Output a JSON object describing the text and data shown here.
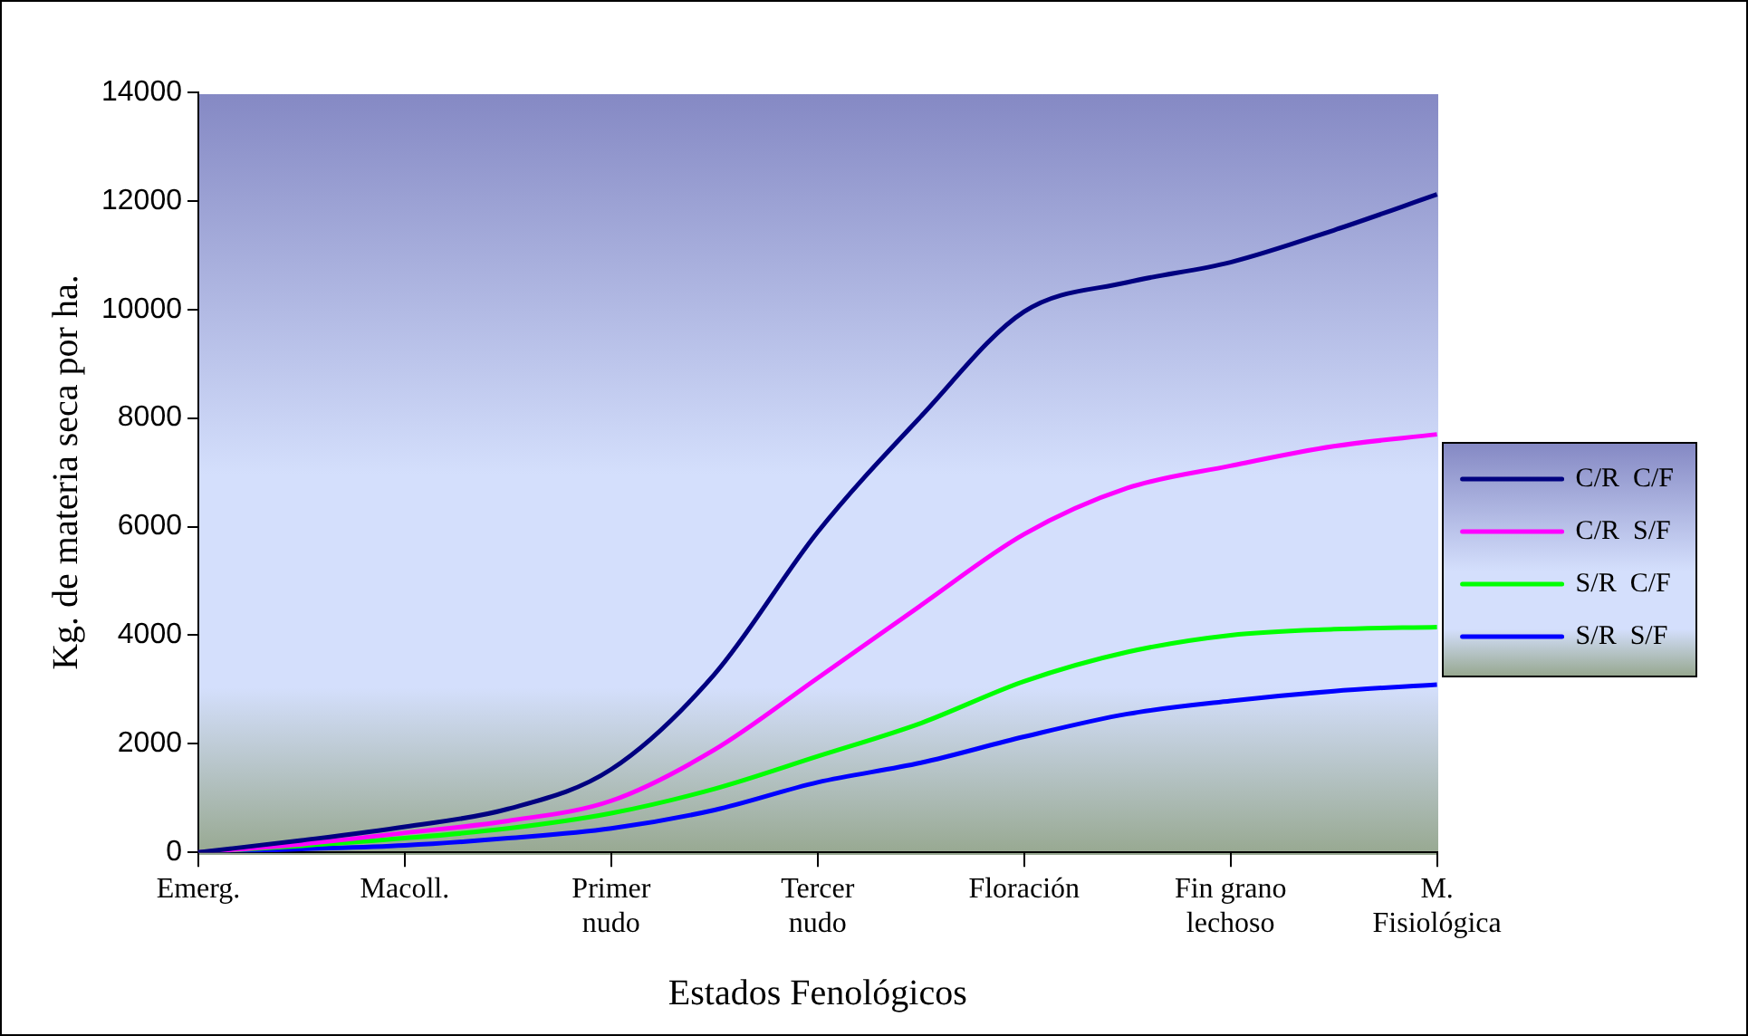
{
  "chart_data": {
    "type": "line",
    "xlabel": "Estados Fenológicos",
    "ylabel": "Kg. de materia seca por ha.",
    "categories": [
      "Emerg.",
      null,
      "Macoll.",
      null,
      "Primer nudo",
      null,
      "Tercer nudo",
      null,
      "Floración",
      null,
      "Fin grano lechoso",
      null,
      "M. Fisiológica"
    ],
    "ylim": [
      0,
      14000
    ],
    "yticks": [
      0,
      2000,
      4000,
      6000,
      8000,
      10000,
      12000,
      14000
    ],
    "grid": false,
    "legend": "right",
    "marker": "none",
    "line_style": "solid",
    "series": [
      {
        "name": "C/R  C/F",
        "color": "#000080",
        "values": [
          0,
          220,
          470,
          800,
          1530,
          3280,
          5900,
          8030,
          9960,
          10500,
          10870,
          11460,
          12120
        ]
      },
      {
        "name": "C/R  S/F",
        "color": "#ff00ff",
        "values": [
          0,
          150,
          360,
          580,
          950,
          1890,
          3210,
          4550,
          5860,
          6710,
          7120,
          7480,
          7700
        ]
      },
      {
        "name": "S/R  C/F",
        "color": "#00ff00",
        "values": [
          0,
          120,
          260,
          440,
          720,
          1170,
          1770,
          2380,
          3150,
          3690,
          4000,
          4110,
          4150
        ]
      },
      {
        "name": "S/R  S/F",
        "color": "#0000ff",
        "values": [
          0,
          60,
          130,
          260,
          440,
          780,
          1290,
          1650,
          2130,
          2550,
          2790,
          2970,
          3090
        ]
      }
    ]
  }
}
